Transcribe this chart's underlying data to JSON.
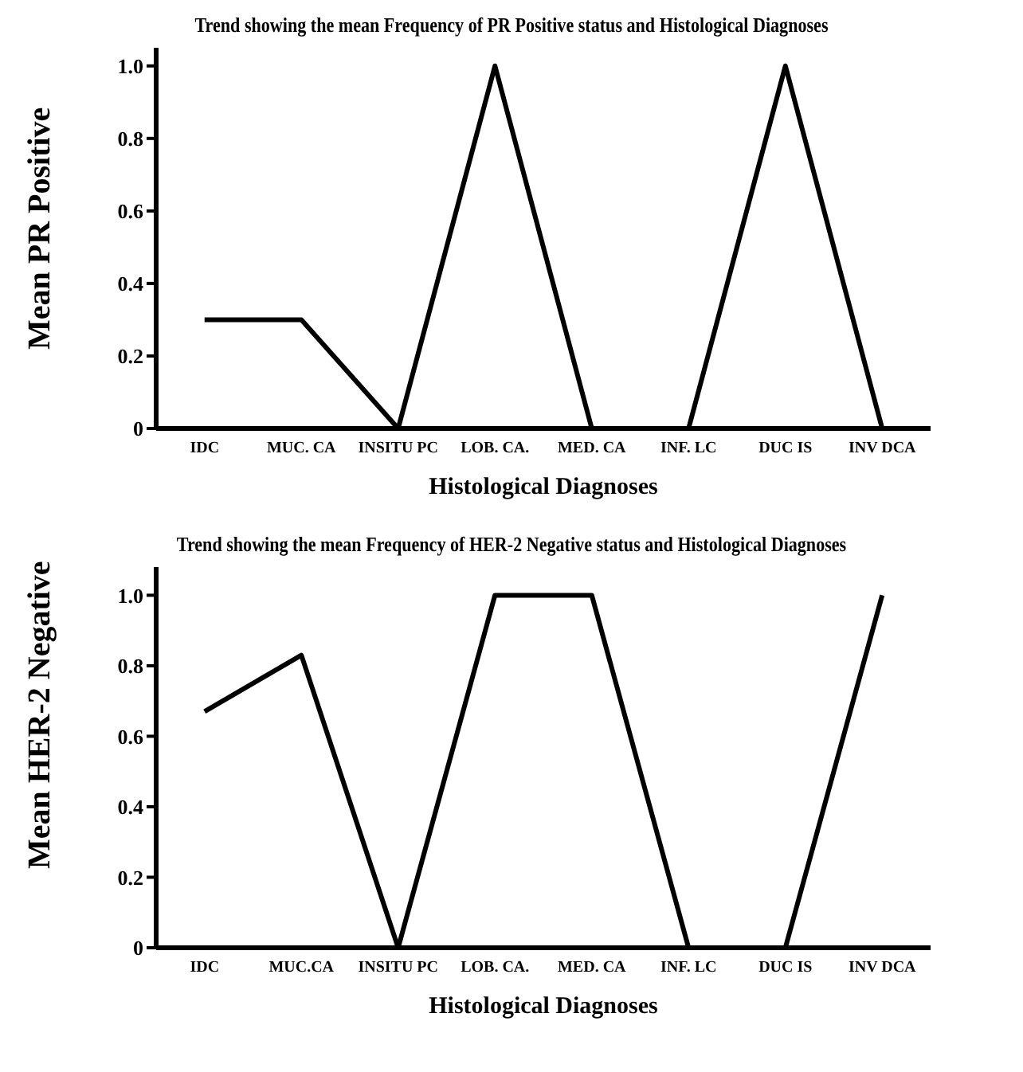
{
  "chart_data": [
    {
      "type": "line",
      "title": "Trend showing the mean Frequency of PR Positive status and Histological Diagnoses",
      "xlabel": "Histological Diagnoses",
      "ylabel": "Mean PR Positive",
      "categories": [
        "IDC",
        "MUC. CA",
        "INSITU PC",
        "LOB. CA.",
        "MED. CA",
        "INF. LC",
        "DUC IS",
        "INV DCA"
      ],
      "series": [
        {
          "color": "#000000",
          "values": [
            0.3,
            0.3,
            0,
            1.0,
            0,
            0,
            1.0,
            0
          ]
        }
      ],
      "ylim": [
        0,
        1.05
      ],
      "yticks": [
        0,
        {
          "value": 0.2,
          "label": "0.2"
        },
        {
          "value": 0.4,
          "label": "0.4"
        },
        {
          "value": 0.6,
          "label": "0.6"
        },
        {
          "value": 0.8,
          "label": "0.8"
        },
        {
          "value": 1.0,
          "label": "1.0"
        }
      ],
      "marker": "none"
    },
    {
      "type": "line",
      "title": "Trend showing the mean Frequency of HER-2 Negative status and Histological Diagnoses",
      "xlabel": "Histological Diagnoses",
      "ylabel": "Mean HER-2 Negative",
      "categories": [
        "IDC",
        "MUC.CA",
        "INSITU PC",
        "LOB. CA.",
        "MED. CA",
        "INF. LC",
        "DUC IS",
        "INV DCA"
      ],
      "series": [
        {
          "color": "#000000",
          "values": [
            0.67,
            0.83,
            0,
            1.0,
            1.0,
            0,
            0,
            1.0
          ]
        }
      ],
      "ylim": [
        0,
        1.08
      ],
      "yticks": [
        0,
        {
          "value": 0.2,
          "label": "0.2"
        },
        {
          "value": 0.4,
          "label": "0.4"
        },
        {
          "value": 0.6,
          "label": "0.6"
        },
        {
          "value": 0.8,
          "label": "0.8"
        },
        {
          "value": 1.0,
          "label": "1.0"
        }
      ],
      "marker": "none"
    }
  ]
}
